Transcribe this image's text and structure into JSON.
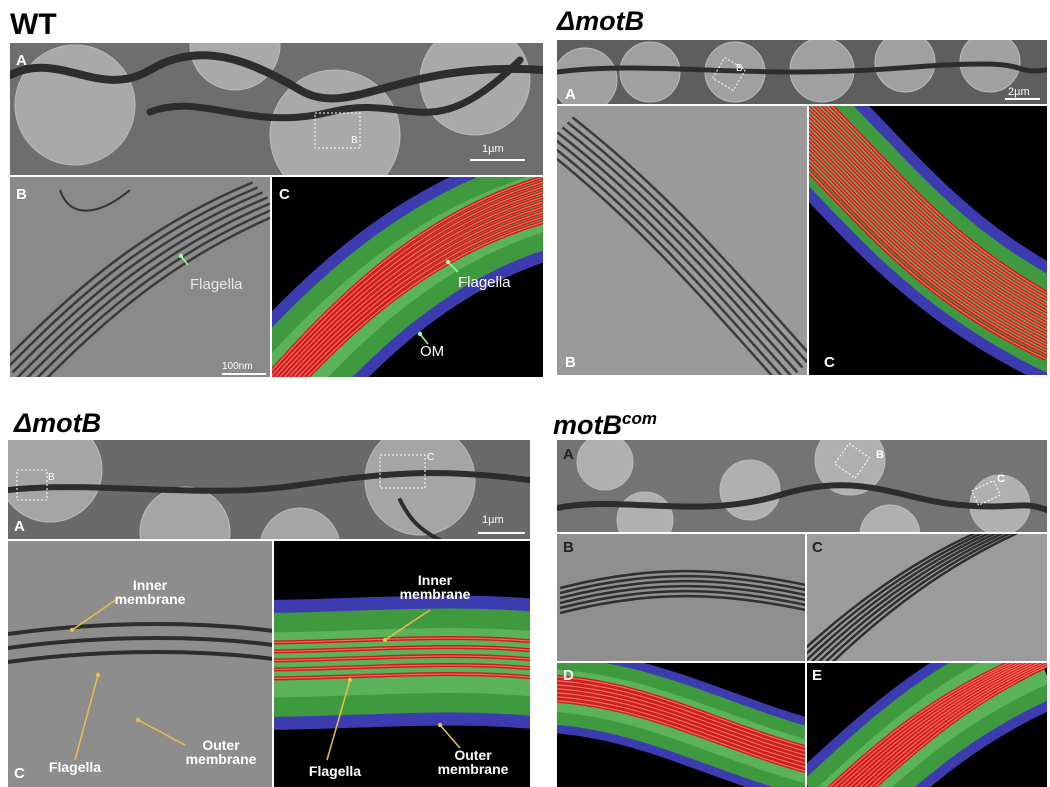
{
  "panels": [
    {
      "title": "WT",
      "labels": [
        "A",
        "B",
        "C"
      ],
      "box_label": "B",
      "scale_bars": [
        "1µm",
        "100nm"
      ],
      "annotations": [
        "Flagella",
        "Flagella",
        "OM"
      ]
    },
    {
      "title": "ΔmotB",
      "labels": [
        "A",
        "B",
        "C"
      ],
      "box_label": "B",
      "scale_bars": [
        "2µm"
      ]
    },
    {
      "title": "ΔmotB",
      "labels": [
        "A",
        "C"
      ],
      "box_labels": [
        "B",
        "C"
      ],
      "scale_bars": [
        "1µm"
      ],
      "annotations": [
        "Inner membrane",
        "Flagella",
        "Outer membrane",
        "Inner membrane",
        "Flagella",
        "Outer membrane"
      ]
    },
    {
      "title": "motB",
      "title_superscript": "com",
      "labels": [
        "A",
        "B",
        "C",
        "D",
        "E"
      ],
      "box_labels": [
        "B",
        "C"
      ]
    }
  ]
}
